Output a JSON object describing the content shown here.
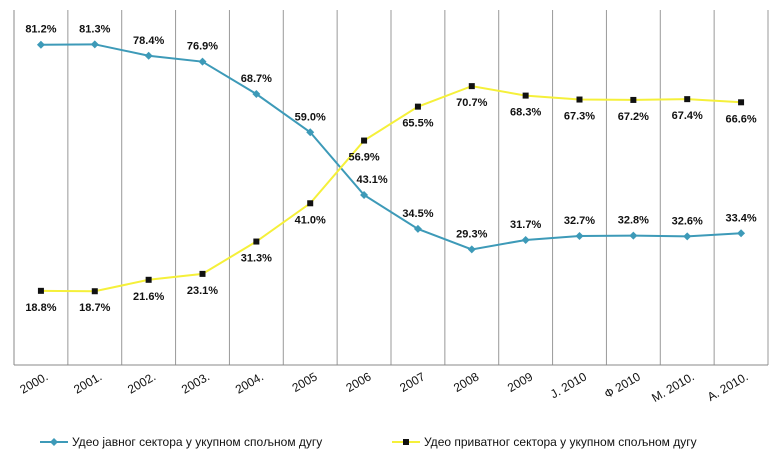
{
  "chart_data": {
    "type": "line",
    "categories": [
      "2000.",
      "2001.",
      "2002.",
      "2003.",
      "2004.",
      "2005",
      "2006",
      "2007",
      "2008",
      "2009",
      "J. 2010",
      "Ф 2010",
      "М. 2010.",
      "А. 2010."
    ],
    "ylim": [
      0,
      90
    ],
    "series": [
      {
        "name": "Удео јавног сектора у укупном спољном дугу",
        "color": "#3d9ab8",
        "marker": "diamond",
        "values": [
          81.2,
          81.3,
          78.4,
          76.9,
          68.7,
          59.0,
          43.1,
          34.5,
          29.3,
          31.7,
          32.7,
          32.8,
          32.6,
          33.4
        ],
        "value_labels": [
          "81.2%",
          "81.3%",
          "78.4%",
          "76.9%",
          "68.7%",
          "59.0%",
          "43.1%",
          "34.5%",
          "29.3%",
          "31.7%",
          "32.7%",
          "32.8%",
          "32.6%",
          "33.4%"
        ]
      },
      {
        "name": "Удео приватног сектора у укупном спољном дугу",
        "color": "#f5f03a",
        "marker": "square",
        "values": [
          18.8,
          18.7,
          21.6,
          23.1,
          31.3,
          41.0,
          56.9,
          65.5,
          70.7,
          68.3,
          67.3,
          67.2,
          67.4,
          66.6
        ],
        "value_labels": [
          "18.8%",
          "18.7%",
          "21.6%",
          "23.1%",
          "31.3%",
          "41.0%",
          "56.9%",
          "65.5%",
          "70.7%",
          "68.3%",
          "67.3%",
          "67.2%",
          "67.4%",
          "66.6%"
        ]
      }
    ]
  }
}
